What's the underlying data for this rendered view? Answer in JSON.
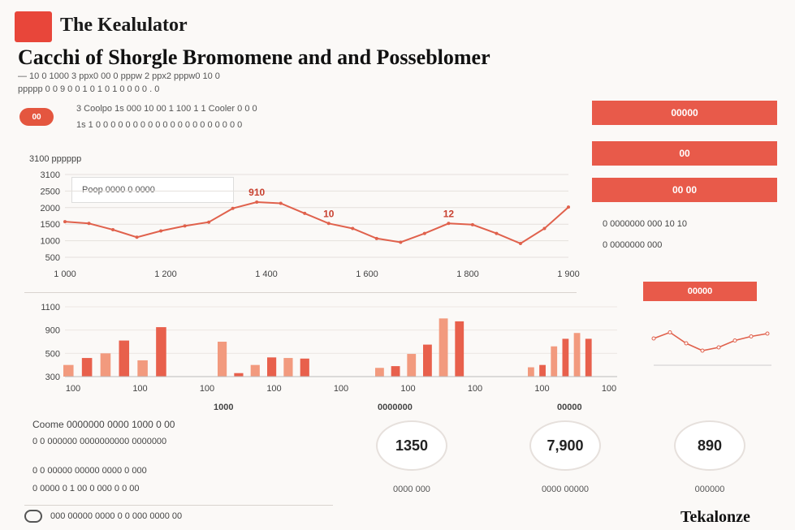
{
  "header": {
    "logo_text": "",
    "app_title": "The Kealulator",
    "headline": "Cacchi of Shorgle Bromomene and and Posseblomer",
    "meta_line_1": "— 10 0 1000 3 ppx0 00 0 pppw 2 ppx2 pppw0 10 0",
    "meta_line_2": "ppppp 0 0 9 0 0 1 0 1 0 1 0 0 0 0 . 0"
  },
  "intro": {
    "chip": "00",
    "line_1": "3 Coolpo 1s 000 10 00 1 100 1 1 Cooler 0 0 0",
    "line_2": "1s 1 0 0 0 0 0 0 0 0 0 0 0 0 0 0 0 0 0 0 0 0"
  },
  "buttons": {
    "primary": "00000",
    "secondary": "00",
    "tertiary": "00 00"
  },
  "side_notes": {
    "note_1": "0 0000000 000 10 10",
    "note_2": "0 0000000 000",
    "small_button": "00000"
  },
  "line_chart_legend": "Poop 0000 0 0000",
  "line_chart_header": "3100 pppppp",
  "bar_group_labels": [
    "1000",
    "0000000",
    "00000"
  ],
  "summary": {
    "line_1": "Coome 0000000 0000 1000 0 00",
    "line_2": "0 0 000000 0000000000 0000000",
    "line_3": "0 0 00000 00000 0000 0 000",
    "line_4": "0 0000 0 1 00 0 000 0 0 00"
  },
  "gauges": [
    {
      "value": "1350",
      "label": "0000 000"
    },
    {
      "value": "7,900",
      "label": "0000 00000"
    },
    {
      "value": "890",
      "label": "000000"
    }
  ],
  "footer": {
    "note": "000 00000 0000 0 0 000 0000 00",
    "brand": "Tekalonze"
  },
  "colors": {
    "accent": "#e85a4a",
    "line": "#e0614c",
    "bar_dark": "#e8604c",
    "bar_light": "#f29a7e"
  },
  "chart_data": [
    {
      "type": "line",
      "title": "",
      "x_tick_labels": [
        "1 000",
        "1 200",
        "1 400",
        "1 600",
        "1 800",
        "1 900"
      ],
      "y_tick_labels": [
        "3100",
        "2500",
        "2000",
        "1500",
        "1000",
        "500"
      ],
      "ylim": [
        0,
        3300
      ],
      "series": [
        {
          "values": [
            {
              "x": 0,
              "y": 1420
            },
            {
              "x": 1,
              "y": 1350
            },
            {
              "x": 2,
              "y": 1100
            },
            {
              "x": 3,
              "y": 800
            },
            {
              "x": 4,
              "y": 1050
            },
            {
              "x": 5,
              "y": 1250
            },
            {
              "x": 6,
              "y": 1400
            },
            {
              "x": 7,
              "y": 1950
            },
            {
              "x": 8,
              "y": 2200
            },
            {
              "x": 9,
              "y": 2150
            },
            {
              "x": 10,
              "y": 1750
            },
            {
              "x": 11,
              "y": 1350
            },
            {
              "x": 12,
              "y": 1150
            },
            {
              "x": 13,
              "y": 750
            },
            {
              "x": 14,
              "y": 600
            },
            {
              "x": 15,
              "y": 950
            },
            {
              "x": 16,
              "y": 1350
            },
            {
              "x": 17,
              "y": 1300
            },
            {
              "x": 18,
              "y": 950
            },
            {
              "x": 19,
              "y": 550
            },
            {
              "x": 20,
              "y": 1150
            },
            {
              "x": 21,
              "y": 2000
            }
          ]
        }
      ],
      "annotations": [
        {
          "x": 8,
          "label": "910"
        },
        {
          "x": 11,
          "label": "10"
        },
        {
          "x": 16,
          "label": "12"
        }
      ],
      "grid": true
    },
    {
      "type": "bar",
      "title": "",
      "y_tick_labels": [
        "1100",
        "900",
        "500",
        "300"
      ],
      "ylim": [
        0,
        1200
      ],
      "category_labels": [
        "100",
        "100",
        "100",
        "100",
        "100",
        "100",
        "100",
        "100",
        "100"
      ],
      "values": [
        200,
        320,
        400,
        620,
        280,
        850,
        600,
        60,
        200,
        330,
        320,
        310,
        150,
        180,
        390,
        550,
        1000,
        950,
        160,
        200,
        520,
        650,
        750,
        650
      ],
      "grid": true
    },
    {
      "type": "line",
      "title": "",
      "series": [
        {
          "values": [
            {
              "x": 0,
              "y": 60
            },
            {
              "x": 1,
              "y": 75
            },
            {
              "x": 2,
              "y": 48
            },
            {
              "x": 3,
              "y": 30
            },
            {
              "x": 4,
              "y": 38
            },
            {
              "x": 5,
              "y": 55
            },
            {
              "x": 6,
              "y": 65
            },
            {
              "x": 7,
              "y": 72
            }
          ]
        }
      ]
    }
  ]
}
